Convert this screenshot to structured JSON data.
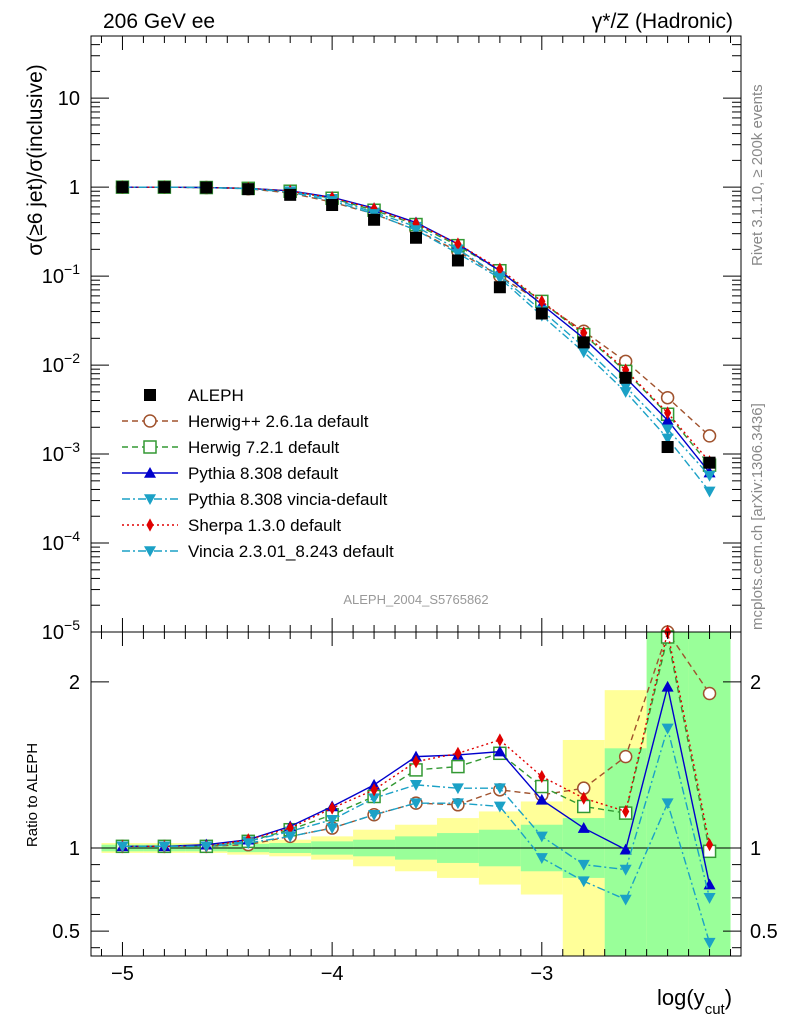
{
  "header": {
    "left": "206 GeV ee",
    "right": "γ*/Z (Hadronic)"
  },
  "side_labels": {
    "rivet": "Rivet 3.1.10, ≥ 200k events",
    "mcplots": "mcplots.cern.ch [arXiv:1306.3436]"
  },
  "watermark": "ALEPH_2004_S5765862",
  "chart_data": [
    {
      "type": "line",
      "panel": "main",
      "ylabel": "σ(≥6 jet)/σ(inclusive)",
      "yscale": "log",
      "ylim": [
        1e-05,
        50
      ],
      "ytick_labels": [
        "10",
        "1",
        "10−1",
        "10−2",
        "10−3",
        "10−4",
        "10−5"
      ],
      "x": [
        -5.0,
        -4.8,
        -4.6,
        -4.4,
        -4.2,
        -4.0,
        -3.8,
        -3.6,
        -3.4,
        -3.2,
        -3.0,
        -2.8,
        -2.6,
        -2.4,
        -2.2
      ],
      "series": [
        {
          "name": "ALEPH",
          "color": "#000000",
          "marker": "square-filled",
          "line": "none",
          "values": [
            1.0,
            1.0,
            0.99,
            0.95,
            0.82,
            0.63,
            0.43,
            0.27,
            0.15,
            0.075,
            0.038,
            0.018,
            0.0072,
            0.0012,
            0.0008
          ]
        },
        {
          "name": "Herwig++ 2.6.1a default",
          "color": "#a0522d",
          "marker": "circle-open",
          "line": "dashed",
          "values": [
            1.0,
            1.0,
            0.99,
            0.96,
            0.86,
            0.68,
            0.5,
            0.33,
            0.19,
            0.1,
            0.05,
            0.024,
            0.011,
            0.0043,
            0.0016
          ]
        },
        {
          "name": "Herwig 7.2.1 default",
          "color": "#339933",
          "marker": "square-open",
          "line": "dashed",
          "values": [
            1.0,
            1.0,
            0.99,
            0.97,
            0.9,
            0.75,
            0.55,
            0.38,
            0.22,
            0.115,
            0.052,
            0.022,
            0.0085,
            0.0028,
            0.00075
          ]
        },
        {
          "name": "Pythia 8.308 default",
          "color": "#0000cc",
          "marker": "triangle-up",
          "line": "solid",
          "values": [
            1.0,
            1.0,
            0.99,
            0.97,
            0.91,
            0.77,
            0.58,
            0.4,
            0.23,
            0.115,
            0.048,
            0.02,
            0.0072,
            0.0024,
            0.00062
          ]
        },
        {
          "name": "Pythia 8.308 vincia-default",
          "color": "#1ba1c6",
          "marker": "triangle-down",
          "line": "dashdot",
          "values": [
            1.0,
            1.0,
            0.99,
            0.97,
            0.9,
            0.74,
            0.52,
            0.36,
            0.2,
            0.1,
            0.041,
            0.016,
            0.0057,
            0.0019,
            0.00057
          ]
        },
        {
          "name": "Sherpa 1.3.0 default",
          "color": "#e00000",
          "marker": "diamond",
          "line": "dotted",
          "values": [
            1.0,
            1.0,
            0.99,
            0.97,
            0.9,
            0.76,
            0.57,
            0.39,
            0.23,
            0.12,
            0.052,
            0.023,
            0.0088,
            0.0029,
            0.00082
          ]
        },
        {
          "name": "Vincia 2.3.01_8.243 default",
          "color": "#1ba1c6",
          "marker": "triangle-down",
          "line": "dashdot",
          "values": [
            1.0,
            1.0,
            0.99,
            0.96,
            0.88,
            0.7,
            0.5,
            0.33,
            0.18,
            0.095,
            0.036,
            0.014,
            0.005,
            0.0015,
            0.00038
          ]
        }
      ]
    },
    {
      "type": "line",
      "panel": "ratio",
      "ylabel": "Ratio to ALEPH",
      "xlabel": "log(y",
      "xlabel_sub": "cut",
      "xlabel_close": ")",
      "ylim": [
        0.35,
        2.3
      ],
      "ytick_labels": [
        "0.5",
        "1",
        "2"
      ],
      "xlim": [
        -5.15,
        -2.05
      ],
      "xtick_labels": [
        "−5",
        "−4",
        "−3"
      ],
      "xtick_values": [
        -5,
        -4,
        -3
      ],
      "x": [
        -5.0,
        -4.8,
        -4.6,
        -4.4,
        -4.2,
        -4.0,
        -3.8,
        -3.6,
        -3.4,
        -3.2,
        -3.0,
        -2.8,
        -2.6,
        -2.4,
        -2.2
      ],
      "bands": {
        "edges": [
          -5.1,
          -4.9,
          -4.7,
          -4.5,
          -4.3,
          -4.1,
          -3.9,
          -3.7,
          -3.5,
          -3.3,
          -3.1,
          -2.9,
          -2.7,
          -2.5,
          -2.3,
          -2.1
        ],
        "yellow": [
          [
            0.97,
            1.03
          ],
          [
            0.97,
            1.03
          ],
          [
            0.97,
            1.03
          ],
          [
            0.96,
            1.04
          ],
          [
            0.95,
            1.05
          ],
          [
            0.93,
            1.07
          ],
          [
            0.89,
            1.11
          ],
          [
            0.86,
            1.14
          ],
          [
            0.82,
            1.18
          ],
          [
            0.78,
            1.22
          ],
          [
            0.72,
            1.28
          ],
          [
            0.35,
            1.65
          ],
          [
            0.35,
            1.95
          ],
          [
            0.35,
            2.3
          ],
          [
            0.35,
            2.3
          ]
        ],
        "green": [
          [
            0.98,
            1.02
          ],
          [
            0.98,
            1.02
          ],
          [
            0.98,
            1.02
          ],
          [
            0.975,
            1.025
          ],
          [
            0.97,
            1.03
          ],
          [
            0.96,
            1.04
          ],
          [
            0.95,
            1.05
          ],
          [
            0.93,
            1.07
          ],
          [
            0.91,
            1.09
          ],
          [
            0.89,
            1.11
          ],
          [
            0.86,
            1.14
          ],
          [
            0.82,
            1.18
          ],
          [
            0.35,
            1.6
          ],
          [
            0.35,
            2.3
          ],
          [
            0.35,
            2.3
          ]
        ]
      },
      "series": [
        {
          "name": "Herwig++ 2.6.1a default",
          "color": "#a0522d",
          "marker": "circle-open",
          "line": "dashed",
          "values": [
            1.01,
            1.01,
            1.01,
            1.02,
            1.07,
            1.12,
            1.2,
            1.27,
            1.26,
            1.35,
            1.32,
            1.36,
            1.55,
            2.75,
            1.93
          ]
        },
        {
          "name": "Herwig 7.2.1 default",
          "color": "#339933",
          "marker": "square-open",
          "line": "dashed",
          "values": [
            1.01,
            1.01,
            1.01,
            1.04,
            1.11,
            1.2,
            1.31,
            1.47,
            1.49,
            1.57,
            1.37,
            1.25,
            1.21,
            2.27,
            0.98
          ]
        },
        {
          "name": "Pythia 8.308 default",
          "color": "#0000cc",
          "marker": "triangle-up",
          "line": "solid",
          "values": [
            1.01,
            1.01,
            1.02,
            1.05,
            1.13,
            1.25,
            1.38,
            1.55,
            1.56,
            1.58,
            1.29,
            1.12,
            0.99,
            1.97,
            0.78
          ]
        },
        {
          "name": "Pythia 8.308 vincia-default",
          "color": "#1ba1c6",
          "marker": "triangle-down",
          "line": "dashdot",
          "values": [
            1.01,
            1.01,
            1.01,
            1.04,
            1.1,
            1.17,
            1.3,
            1.38,
            1.36,
            1.36,
            1.07,
            0.9,
            0.87,
            1.72,
            0.7
          ]
        },
        {
          "name": "Sherpa 1.3.0 default",
          "color": "#e00000",
          "marker": "diamond",
          "line": "dotted",
          "values": [
            1.01,
            1.01,
            1.01,
            1.05,
            1.12,
            1.24,
            1.35,
            1.52,
            1.57,
            1.65,
            1.43,
            1.3,
            1.22,
            2.3,
            1.02
          ]
        },
        {
          "name": "Vincia 2.3.01_8.243 default",
          "color": "#1ba1c6",
          "marker": "triangle-down",
          "line": "dashdot",
          "values": [
            1.01,
            1.01,
            1.01,
            1.03,
            1.07,
            1.12,
            1.2,
            1.27,
            1.27,
            1.25,
            0.94,
            0.8,
            0.69,
            1.27,
            0.43
          ]
        }
      ]
    }
  ]
}
